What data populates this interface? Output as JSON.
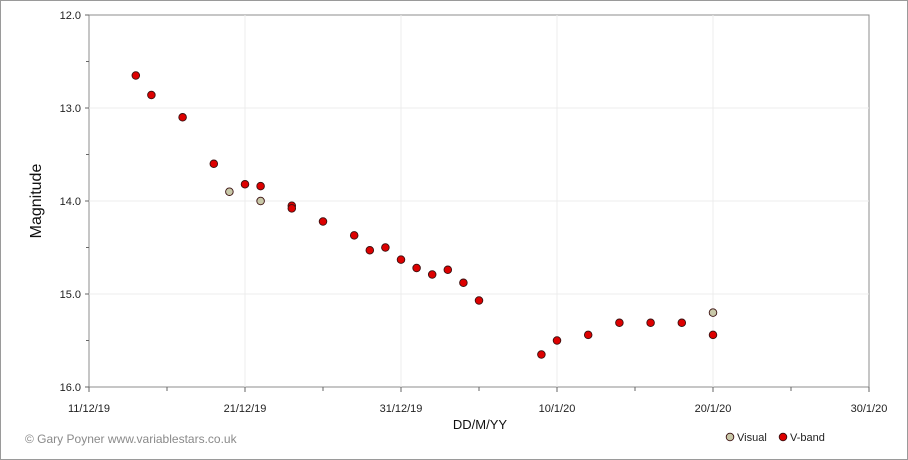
{
  "chart_data": {
    "type": "scatter",
    "title": "",
    "xlabel": "DD/M/YY",
    "ylabel": "Magnitude",
    "y_inverted": true,
    "ylim": [
      12.0,
      16.0
    ],
    "xlim": [
      "11/12/19",
      "30/1/20"
    ],
    "x_tick_labels": [
      "11/12/19",
      "21/12/19",
      "31/12/19",
      "10/1/20",
      "20/1/20",
      "30/1/20"
    ],
    "y_tick_labels": [
      "12.0",
      "13.0",
      "14.0",
      "15.0",
      "16.0"
    ],
    "grid": true,
    "legend_position": "bottom-right",
    "series": [
      {
        "name": "Visual",
        "color": "#c8c8a8",
        "points": [
          {
            "x": "2019-12-20",
            "y": 13.9
          },
          {
            "x": "2019-12-22",
            "y": 14.0
          },
          {
            "x": "2020-01-20",
            "y": 15.2
          }
        ]
      },
      {
        "name": "V-band",
        "color": "#dd0000",
        "points": [
          {
            "x": "2019-12-14",
            "y": 12.65
          },
          {
            "x": "2019-12-15",
            "y": 12.86
          },
          {
            "x": "2019-12-17",
            "y": 13.1
          },
          {
            "x": "2019-12-19",
            "y": 13.6
          },
          {
            "x": "2019-12-21",
            "y": 13.82
          },
          {
            "x": "2019-12-22",
            "y": 13.84
          },
          {
            "x": "2019-12-24",
            "y": 14.05
          },
          {
            "x": "2019-12-24",
            "y": 14.08
          },
          {
            "x": "2019-12-26",
            "y": 14.22
          },
          {
            "x": "2019-12-28",
            "y": 14.37
          },
          {
            "x": "2019-12-29",
            "y": 14.53
          },
          {
            "x": "2019-12-30",
            "y": 14.5
          },
          {
            "x": "2019-12-31",
            "y": 14.63
          },
          {
            "x": "2020-01-01",
            "y": 14.72
          },
          {
            "x": "2020-01-02",
            "y": 14.79
          },
          {
            "x": "2020-01-03",
            "y": 14.74
          },
          {
            "x": "2020-01-04",
            "y": 14.88
          },
          {
            "x": "2020-01-05",
            "y": 15.07
          },
          {
            "x": "2020-01-09",
            "y": 15.65
          },
          {
            "x": "2020-01-10",
            "y": 15.5
          },
          {
            "x": "2020-01-12",
            "y": 15.44
          },
          {
            "x": "2020-01-14",
            "y": 15.31
          },
          {
            "x": "2020-01-16",
            "y": 15.31
          },
          {
            "x": "2020-01-18",
            "y": 15.31
          },
          {
            "x": "2020-01-20",
            "y": 15.44
          }
        ]
      }
    ]
  },
  "credit": "© Gary Poyner  www.variablestars.co.uk"
}
